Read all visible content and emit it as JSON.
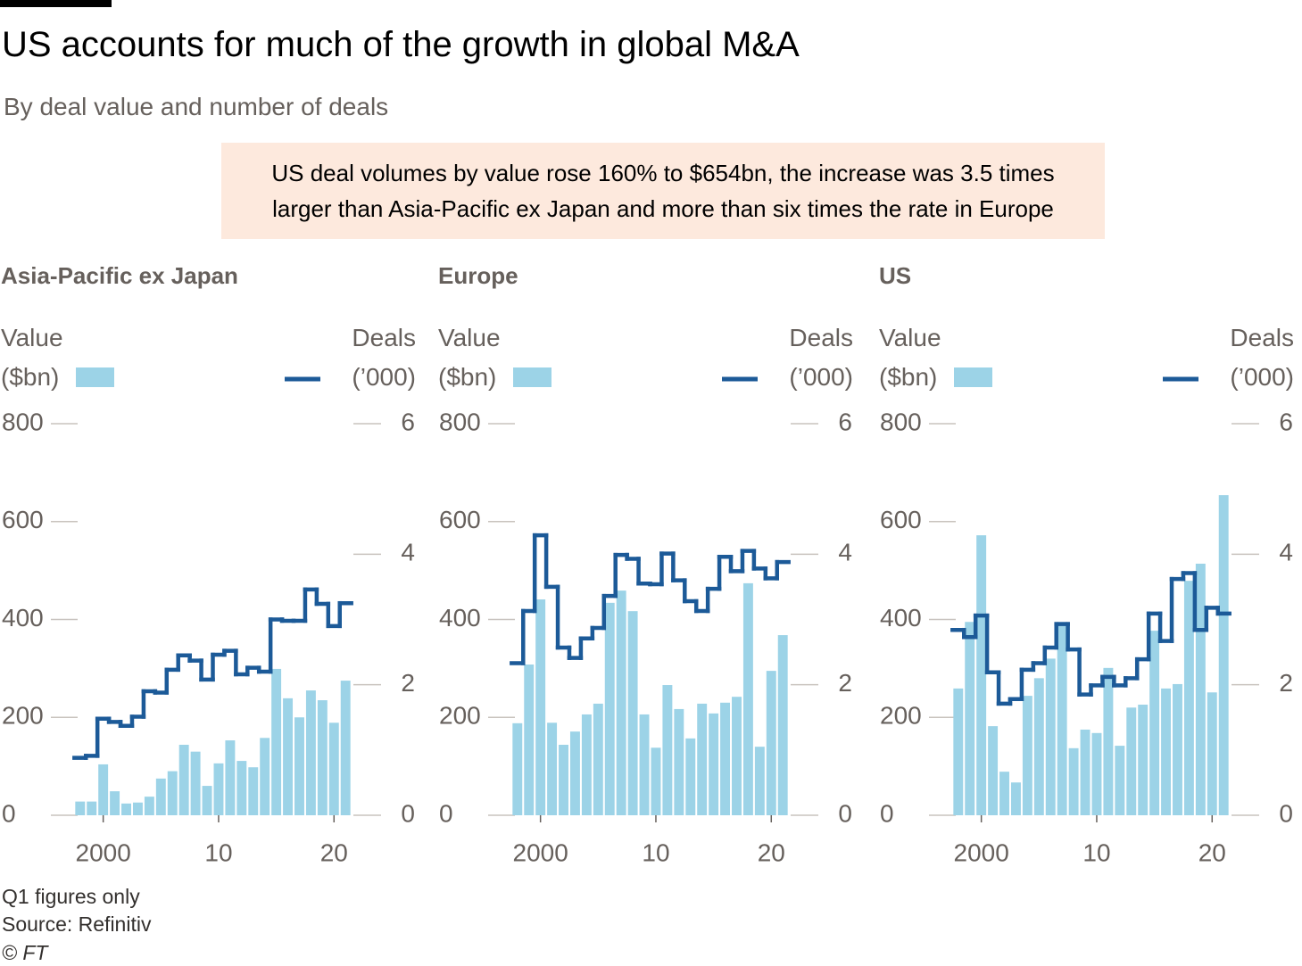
{
  "title": "US accounts for much of the growth in global M&A",
  "subtitle": "By deal value and number of deals",
  "annotation": [
    "US deal volumes by value rose 160% to $654bn, the increase was 3.5 times",
    "larger than Asia-Pacific ex Japan and more than six times the rate in Europe"
  ],
  "notes": [
    "Q1 figures only",
    "Source: Refinitiv",
    "© FT"
  ],
  "chart_data": [
    {
      "type": "bar_line",
      "title": "Asia-Pacific ex Japan",
      "x": [
        1998,
        1999,
        2000,
        2001,
        2002,
        2003,
        2004,
        2005,
        2006,
        2007,
        2008,
        2009,
        2010,
        2011,
        2012,
        2013,
        2014,
        2015,
        2016,
        2017,
        2018,
        2019,
        2020,
        2021
      ],
      "xlim": [
        1995,
        2024
      ],
      "xticks": [
        2000,
        {
          "value": 2010,
          "label": "10"
        },
        {
          "value": 2020,
          "label": "20"
        }
      ],
      "ylim": [
        0,
        800
      ],
      "yticks": [
        0,
        200,
        400,
        600,
        800
      ],
      "y2lim": [
        0,
        6
      ],
      "y2ticks": [
        0,
        2,
        4,
        6
      ],
      "series": [
        {
          "name": "Value ($bn)",
          "type": "bar",
          "color": "#9cd3e7",
          "values": [
            28,
            28,
            104,
            49,
            24,
            26,
            38,
            75,
            90,
            144,
            130,
            60,
            106,
            153,
            111,
            98,
            158,
            299,
            239,
            200,
            255,
            235,
            189,
            275
          ]
        },
        {
          "name": "Deals (’000)",
          "type": "line",
          "axis": "y2",
          "color": "#1c5a98",
          "values": [
            0.88,
            0.91,
            1.48,
            1.43,
            1.37,
            1.51,
            1.9,
            1.88,
            2.23,
            2.45,
            2.37,
            2.08,
            2.46,
            2.52,
            2.16,
            2.26,
            2.2,
            3.0,
            2.98,
            2.98,
            3.46,
            3.24,
            2.9,
            3.25
          ]
        }
      ]
    },
    {
      "type": "bar_line",
      "title": "Europe",
      "x": [
        1998,
        1999,
        2000,
        2001,
        2002,
        2003,
        2004,
        2005,
        2006,
        2007,
        2008,
        2009,
        2010,
        2011,
        2012,
        2013,
        2014,
        2015,
        2016,
        2017,
        2018,
        2019,
        2020,
        2021
      ],
      "xlim": [
        1995,
        2024
      ],
      "xticks": [
        2000,
        {
          "value": 2010,
          "label": "10"
        },
        {
          "value": 2020,
          "label": "20"
        }
      ],
      "ylim": [
        0,
        800
      ],
      "yticks": [
        0,
        200,
        400,
        600,
        800
      ],
      "y2lim": [
        0,
        6
      ],
      "y2ticks": [
        0,
        2,
        4,
        6
      ],
      "series": [
        {
          "name": "Value ($bn)",
          "type": "bar",
          "color": "#9cd3e7",
          "values": [
            188,
            308,
            441,
            189,
            144,
            171,
            206,
            228,
            434,
            459,
            417,
            206,
            138,
            266,
            217,
            157,
            228,
            208,
            230,
            242,
            474,
            140,
            295,
            368
          ]
        },
        {
          "name": "Deals (’000)",
          "type": "line",
          "axis": "y2",
          "color": "#1c5a98",
          "values": [
            2.33,
            3.13,
            4.29,
            3.5,
            2.57,
            2.41,
            2.71,
            2.87,
            3.36,
            3.99,
            3.93,
            3.55,
            3.54,
            4.01,
            3.6,
            3.28,
            3.13,
            3.47,
            3.96,
            3.74,
            4.05,
            3.78,
            3.63,
            3.88
          ]
        }
      ]
    },
    {
      "type": "bar_line",
      "title": "US",
      "x": [
        1998,
        1999,
        2000,
        2001,
        2002,
        2003,
        2004,
        2005,
        2006,
        2007,
        2008,
        2009,
        2010,
        2011,
        2012,
        2013,
        2014,
        2015,
        2016,
        2017,
        2018,
        2019,
        2020,
        2021
      ],
      "xlim": [
        1995,
        2024
      ],
      "xticks": [
        2000,
        {
          "value": 2010,
          "label": "10"
        },
        {
          "value": 2020,
          "label": "20"
        }
      ],
      "ylim": [
        0,
        800
      ],
      "yticks": [
        0,
        200,
        400,
        600,
        800
      ],
      "y2lim": [
        0,
        6
      ],
      "y2ticks": [
        0,
        2,
        4,
        6
      ],
      "series": [
        {
          "name": "Value ($bn)",
          "type": "bar",
          "color": "#9cd3e7",
          "values": [
            259,
            395,
            572,
            182,
            89,
            67,
            244,
            280,
            320,
            395,
            137,
            175,
            168,
            301,
            142,
            220,
            226,
            377,
            259,
            268,
            479,
            514,
            251,
            654
          ]
        },
        {
          "name": "Deals (’000)",
          "type": "line",
          "axis": "y2",
          "color": "#1c5a98",
          "values": [
            2.84,
            2.73,
            3.06,
            2.19,
            1.71,
            1.78,
            2.23,
            2.33,
            2.57,
            2.93,
            2.54,
            1.85,
            1.99,
            2.12,
            1.99,
            2.1,
            2.39,
            3.09,
            2.67,
            3.62,
            3.71,
            2.84,
            3.18,
            3.09
          ]
        }
      ]
    }
  ]
}
